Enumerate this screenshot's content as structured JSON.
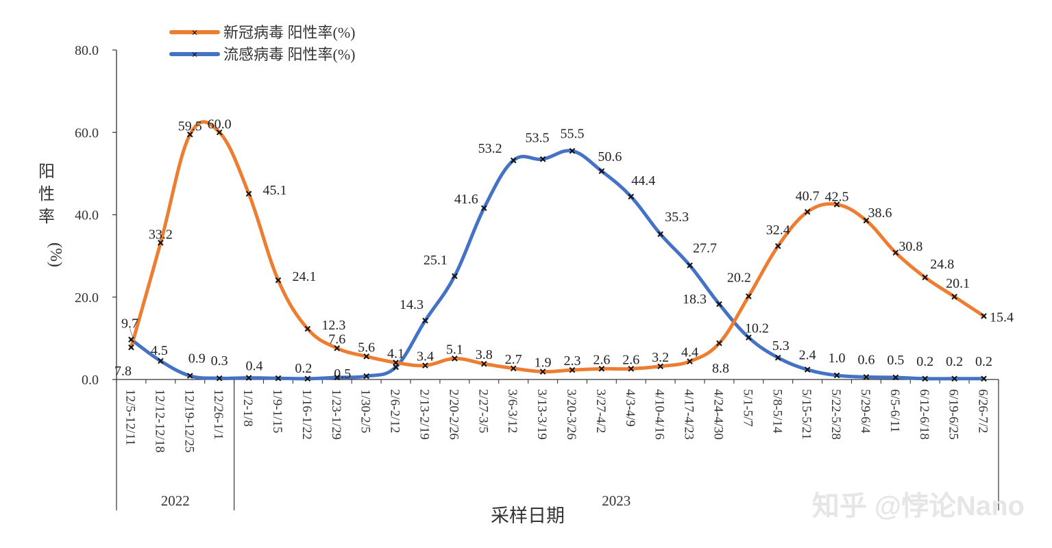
{
  "chart_data": {
    "type": "line",
    "xlabel": "采样日期",
    "ylabel_chars": [
      "阳",
      "性",
      "率"
    ],
    "ylabel_unit": "(%)",
    "ylim": [
      0,
      80
    ],
    "yticks": [
      "0.0",
      "20.0",
      "40.0",
      "60.0",
      "80.0"
    ],
    "categories": [
      "12/5-12/11",
      "12/12-12/18",
      "12/19-12/25",
      "12/26-1/1",
      "1/2-1/8",
      "1/9-1/15",
      "1/16-1/22",
      "1/23-1/29",
      "1/30-2/5",
      "2/6-2/12",
      "2/13-2/19",
      "2/20-2/26",
      "2/27-3/5",
      "3/6-3/12",
      "3/13-3/19",
      "3/20-3/26",
      "3/27-4/2",
      "4/3-4/9",
      "4/10-4/16",
      "4/17-4/23",
      "4/24-4/30",
      "5/1-5/7",
      "5/8-5/14",
      "5/15-5/21",
      "5/22-5/28",
      "5/29-6/4",
      "6/5-6/11",
      "6/12-6/18",
      "6/19-6/25",
      "6/26-7/2"
    ],
    "year_groups": [
      {
        "label": "2022",
        "count": 4
      },
      {
        "label": "2023",
        "count": 26
      }
    ],
    "legend_position": "top-left",
    "series": [
      {
        "name": "新冠病毒 阳性率(%)",
        "color": "#ED7D31",
        "values": [
          7.8,
          33.2,
          59.5,
          60.0,
          45.1,
          24.1,
          12.3,
          7.6,
          5.6,
          4.1,
          3.4,
          5.1,
          3.8,
          2.7,
          1.9,
          2.3,
          2.6,
          2.6,
          3.2,
          4.4,
          8.8,
          20.2,
          32.4,
          40.7,
          42.5,
          38.6,
          30.8,
          24.8,
          20.1,
          15.4
        ],
        "labels": [
          "7.8",
          "33.2",
          "59.5",
          "60.0",
          "45.1",
          "24.1",
          "12.3",
          "7.6",
          "5.6",
          "4.1",
          "3.4",
          "5.1",
          "3.8",
          "2.7",
          "1.9",
          "2.3",
          "2.6",
          "2.6",
          "3.2",
          "4.4",
          "8.8",
          "20.2",
          "32.4",
          "40.7",
          "42.5",
          "38.6",
          "30.8",
          "24.8",
          "20.1",
          "15.4"
        ]
      },
      {
        "name": "流感病毒 阳性率(%)",
        "color": "#4472C4",
        "values": [
          9.7,
          4.5,
          0.9,
          0.3,
          0.4,
          0.3,
          0.2,
          0.5,
          0.8,
          3.0,
          14.3,
          25.1,
          41.6,
          53.2,
          53.5,
          55.5,
          50.6,
          44.4,
          35.3,
          27.7,
          18.3,
          10.2,
          5.3,
          2.4,
          1.0,
          0.6,
          0.5,
          0.2,
          0.2,
          0.2
        ],
        "labels": [
          "9.7",
          "4.5",
          "0.9",
          "0.3",
          "0.4",
          null,
          "0.2",
          "0.5",
          null,
          null,
          "14.3",
          "25.1",
          "41.6",
          "53.2",
          "53.5",
          "55.5",
          "50.6",
          "44.4",
          "35.3",
          "27.7",
          "18.3",
          "10.2",
          "5.3",
          "2.4",
          "1.0",
          "0.6",
          "0.5",
          "0.2",
          "0.2",
          "0.2"
        ]
      }
    ]
  },
  "watermark": {
    "text": "知乎 @悖论Nano"
  }
}
